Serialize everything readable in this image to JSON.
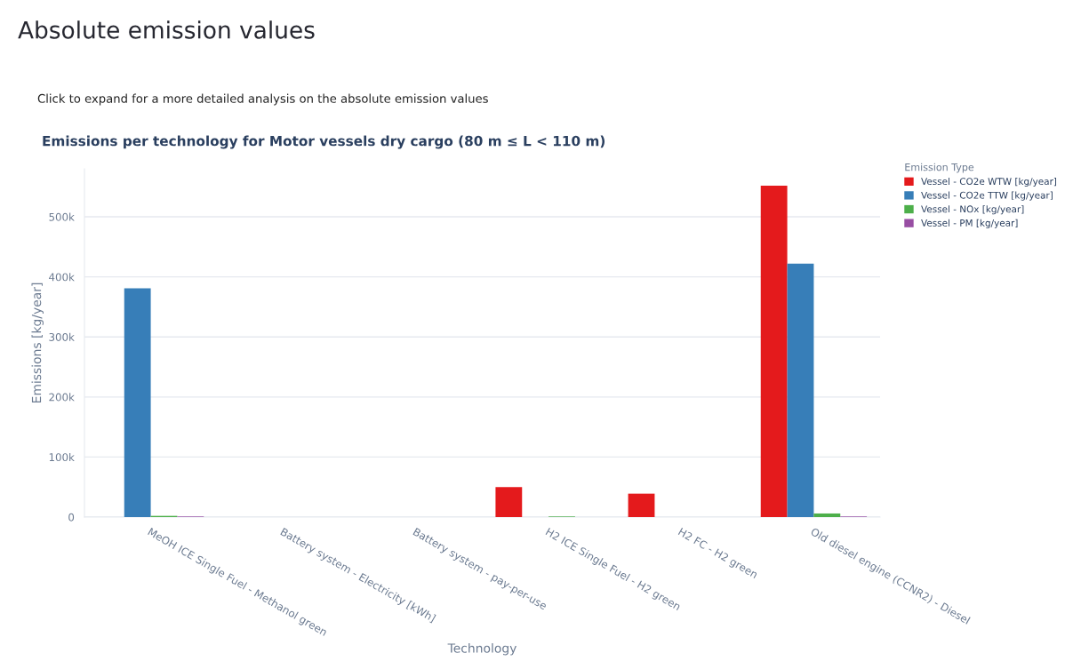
{
  "chart_data": {
    "type": "bar",
    "title": "Emissions per technology for Motor vessels dry cargo (80 m ≤ L < 110 m)",
    "annotations": [
      "Absolute emission values",
      "Click to expand for a more detailed analysis on the absolute emission values"
    ],
    "xlabel": "Technology",
    "ylabel": "Emissions [kg/year]",
    "legend_title": "Emission Type",
    "categories": [
      "MeOH ICE Single Fuel - Methanol green",
      "Battery system - Electricity [kWh]",
      "Battery system - pay-per-use",
      "H2 ICE Single Fuel - H2 green",
      "H2 FC - H2 green",
      "Old diesel engine (CCNR2) - Diesel"
    ],
    "series": [
      {
        "name": "Vessel - CO2e WTW [kg/year]",
        "color": "#e41a1c",
        "values": [
          null,
          null,
          null,
          50000,
          39000,
          552000
        ]
      },
      {
        "name": "Vessel - CO2e TTW [kg/year]",
        "color": "#377eb8",
        "values": [
          381000,
          null,
          null,
          null,
          null,
          422000
        ]
      },
      {
        "name": "Vessel - NOx [kg/year]",
        "color": "#4daf4a",
        "values": [
          2000,
          null,
          null,
          1000,
          null,
          6000
        ]
      },
      {
        "name": "Vessel - PM [kg/year]",
        "color": "#984ea3",
        "values": [
          1000,
          null,
          null,
          null,
          null,
          1000
        ]
      }
    ],
    "ylim": [
      0,
      580000
    ],
    "yticks": [
      0,
      {
        "value": 100000,
        "label": "100k"
      },
      {
        "value": 200000,
        "label": "200k"
      },
      {
        "value": 300000,
        "label": "300k"
      },
      {
        "value": 400000,
        "label": "400k"
      },
      {
        "value": 500000,
        "label": "500k"
      }
    ],
    "grid": "y",
    "legend": "right"
  }
}
